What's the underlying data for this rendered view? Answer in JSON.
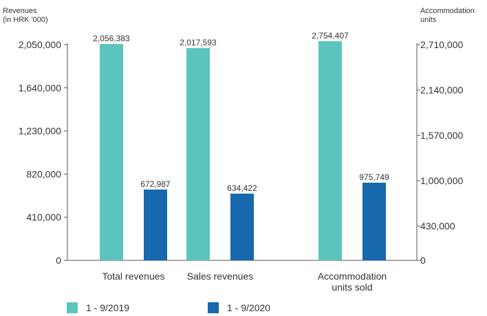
{
  "chart_data": {
    "type": "bar",
    "categories": [
      [
        "Total revenues"
      ],
      [
        "Sales revenues"
      ],
      [
        "Accommodation",
        "units sold"
      ]
    ],
    "series": [
      {
        "name": "1 - 9/2019",
        "values": [
          2056383,
          2017593,
          2754407
        ],
        "labels": [
          "2,056,383",
          "2,017,593",
          "2,754,407"
        ]
      },
      {
        "name": "1 - 9/2020",
        "values": [
          672987,
          634422,
          975749
        ],
        "labels": [
          "672,987",
          "634,422",
          "975,749"
        ]
      }
    ],
    "axis_assignment": [
      "left",
      "left",
      "right"
    ],
    "y_left": {
      "label_lines": [
        "Revenues",
        "(in HRK '000)"
      ],
      "ticks": [
        0,
        410000,
        820000,
        1230000,
        1640000,
        2050000
      ],
      "tick_labels": [
        "0",
        "410,000",
        "820,000",
        "1,230,000",
        "1,640,000",
        "2,050,000"
      ],
      "ylim": [
        0,
        2050000
      ]
    },
    "y_right": {
      "label_lines": [
        "Accommodation",
        "units"
      ],
      "ticks": [
        0,
        430000,
        1000000,
        1570000,
        2140000,
        2710000
      ],
      "tick_labels": [
        "0",
        "430,000",
        "1,000,000",
        "1,570,000",
        "2,140,000",
        "2,710,000"
      ],
      "ylim": [
        0,
        2710000
      ]
    },
    "legend_position": "bottom",
    "grid": false,
    "colors": {
      "series_2019": "#5bc5bd",
      "series_2020": "#1768ad",
      "axis": "#555555"
    }
  }
}
